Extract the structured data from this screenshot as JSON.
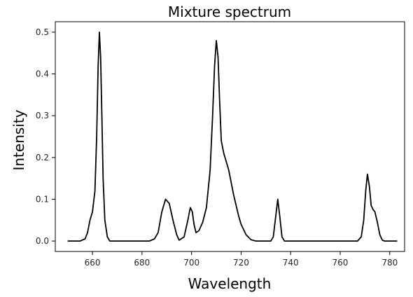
{
  "chart_data": {
    "type": "line",
    "title": "Mixture spectrum",
    "xlabel": "Wavelength",
    "ylabel": "Intensity",
    "xlim": [
      645,
      786
    ],
    "ylim": [
      -0.025,
      0.525
    ],
    "x_ticks": [
      660,
      680,
      700,
      720,
      740,
      760,
      780
    ],
    "y_ticks": [
      0.0,
      0.1,
      0.2,
      0.3,
      0.4,
      0.5
    ],
    "x_tick_labels": [
      "660",
      "680",
      "700",
      "720",
      "740",
      "760",
      "780"
    ],
    "y_tick_labels": [
      "0.0",
      "0.1",
      "0.2",
      "0.3",
      "0.4",
      "0.5"
    ],
    "grid": false,
    "legend": "none",
    "series": [
      {
        "color": "#000000",
        "points": [
          [
            650,
            0.0
          ],
          [
            655,
            0.0
          ],
          [
            657,
            0.005
          ],
          [
            658,
            0.02
          ],
          [
            659,
            0.05
          ],
          [
            660,
            0.07
          ],
          [
            661,
            0.12
          ],
          [
            661.7,
            0.25
          ],
          [
            662.3,
            0.42
          ],
          [
            662.8,
            0.5
          ],
          [
            663.3,
            0.44
          ],
          [
            663.8,
            0.3
          ],
          [
            664.3,
            0.15
          ],
          [
            665,
            0.05
          ],
          [
            666,
            0.01
          ],
          [
            667,
            0.0
          ],
          [
            683,
            0.0
          ],
          [
            685,
            0.005
          ],
          [
            686.5,
            0.02
          ],
          [
            688,
            0.07
          ],
          [
            689.5,
            0.1
          ],
          [
            691,
            0.09
          ],
          [
            692.5,
            0.05
          ],
          [
            694,
            0.015
          ],
          [
            695,
            0.002
          ],
          [
            697,
            0.01
          ],
          [
            698.5,
            0.05
          ],
          [
            699.5,
            0.08
          ],
          [
            700.3,
            0.07
          ],
          [
            701,
            0.04
          ],
          [
            701.8,
            0.02
          ],
          [
            703,
            0.025
          ],
          [
            704.5,
            0.045
          ],
          [
            706,
            0.08
          ],
          [
            707.5,
            0.17
          ],
          [
            708.5,
            0.3
          ],
          [
            709.3,
            0.42
          ],
          [
            710,
            0.48
          ],
          [
            710.7,
            0.44
          ],
          [
            711.3,
            0.34
          ],
          [
            712,
            0.24
          ],
          [
            713,
            0.21
          ],
          [
            714,
            0.19
          ],
          [
            715,
            0.17
          ],
          [
            716,
            0.14
          ],
          [
            717,
            0.11
          ],
          [
            718,
            0.085
          ],
          [
            719,
            0.06
          ],
          [
            720,
            0.04
          ],
          [
            722,
            0.015
          ],
          [
            724,
            0.003
          ],
          [
            726,
            0.0
          ],
          [
            732,
            0.0
          ],
          [
            733,
            0.01
          ],
          [
            734,
            0.06
          ],
          [
            734.8,
            0.1
          ],
          [
            735.6,
            0.06
          ],
          [
            736.5,
            0.01
          ],
          [
            737.5,
            0.0
          ],
          [
            767,
            0.0
          ],
          [
            768.5,
            0.01
          ],
          [
            769.5,
            0.05
          ],
          [
            770.3,
            0.12
          ],
          [
            771,
            0.16
          ],
          [
            771.8,
            0.13
          ],
          [
            772.5,
            0.085
          ],
          [
            773.3,
            0.075
          ],
          [
            774,
            0.07
          ],
          [
            775,
            0.045
          ],
          [
            776,
            0.015
          ],
          [
            777,
            0.002
          ],
          [
            778,
            0.0
          ],
          [
            783,
            0.0
          ]
        ]
      }
    ]
  }
}
